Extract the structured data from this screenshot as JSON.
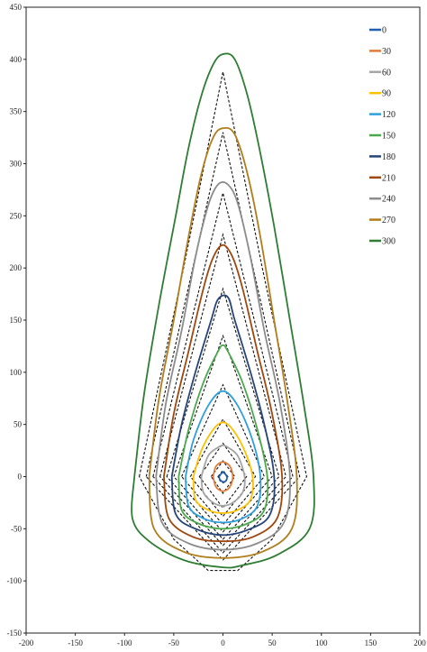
{
  "chart_data": {
    "type": "line",
    "title": "",
    "xlabel": "",
    "ylabel": "",
    "xlim": [
      -200,
      200
    ],
    "ylim": [
      -150,
      450
    ],
    "xticks": [
      -200,
      -150,
      -100,
      -50,
      0,
      50,
      100,
      150,
      200
    ],
    "yticks": [
      -150,
      -100,
      -50,
      0,
      50,
      100,
      150,
      200,
      250,
      300,
      350,
      400,
      450
    ],
    "grid": false,
    "legend_position": "top-right",
    "dashed_style": "black dashed",
    "series": [
      {
        "name": "0",
        "color": "#1f5fae",
        "x": [
          -4,
          0,
          4,
          3,
          0,
          -3,
          -4
        ],
        "y": [
          0,
          4,
          0,
          -4,
          -5,
          -3,
          0
        ]
      },
      {
        "name": "30",
        "color": "#e07b39",
        "x": [
          -10,
          -7,
          0,
          7,
          10,
          7,
          0,
          -7,
          -10
        ],
        "y": [
          0,
          10,
          14,
          10,
          0,
          -10,
          -14,
          -10,
          0
        ]
      },
      {
        "name": "60",
        "color": "#a5a5a5",
        "x": [
          -22,
          -15,
          -5,
          0,
          5,
          15,
          22,
          20,
          10,
          0,
          -10,
          -20,
          -22
        ],
        "y": [
          0,
          20,
          28,
          30,
          28,
          20,
          0,
          -15,
          -25,
          -28,
          -25,
          -15,
          0
        ]
      },
      {
        "name": "90",
        "color": "#ffc000",
        "x": [
          -30,
          -22,
          -10,
          0,
          10,
          22,
          30,
          28,
          15,
          0,
          -15,
          -28,
          -30
        ],
        "y": [
          0,
          25,
          45,
          52,
          45,
          25,
          0,
          -22,
          -32,
          -35,
          -32,
          -22,
          0
        ]
      },
      {
        "name": "120",
        "color": "#2e9fdb",
        "x": [
          -38,
          -30,
          -15,
          0,
          15,
          30,
          38,
          35,
          20,
          0,
          -20,
          -35,
          -38
        ],
        "y": [
          0,
          35,
          68,
          82,
          68,
          35,
          0,
          -28,
          -40,
          -44,
          -40,
          -28,
          0
        ]
      },
      {
        "name": "150",
        "color": "#4ca84c",
        "x": [
          -45,
          -35,
          -20,
          -5,
          0,
          5,
          20,
          35,
          45,
          42,
          25,
          0,
          -25,
          -42,
          -45
        ],
        "y": [
          0,
          45,
          90,
          120,
          126,
          120,
          90,
          45,
          0,
          -32,
          -45,
          -50,
          -45,
          -32,
          0
        ]
      },
      {
        "name": "180",
        "color": "#264478",
        "x": [
          -52,
          -42,
          -28,
          -12,
          -5,
          5,
          12,
          28,
          42,
          52,
          48,
          28,
          0,
          -28,
          -48,
          -52
        ],
        "y": [
          0,
          50,
          100,
          150,
          170,
          172,
          150,
          100,
          50,
          0,
          -36,
          -50,
          -56,
          -50,
          -36,
          0
        ]
      },
      {
        "name": "210",
        "color": "#9e480e",
        "x": [
          -60,
          -50,
          -35,
          -20,
          -10,
          0,
          10,
          20,
          35,
          50,
          60,
          55,
          30,
          0,
          -30,
          -55,
          -60
        ],
        "y": [
          0,
          60,
          120,
          180,
          210,
          222,
          210,
          180,
          120,
          60,
          0,
          -40,
          -58,
          -62,
          -58,
          -40,
          0
        ]
      },
      {
        "name": "240",
        "color": "#8c8c8c",
        "x": [
          -68,
          -58,
          -42,
          -28,
          -15,
          -5,
          5,
          15,
          28,
          42,
          58,
          68,
          62,
          35,
          0,
          -35,
          -62,
          -68
        ],
        "y": [
          0,
          70,
          140,
          210,
          260,
          280,
          280,
          262,
          210,
          140,
          70,
          0,
          -44,
          -64,
          -70,
          -64,
          -44,
          0
        ]
      },
      {
        "name": "270",
        "color": "#b07d1a",
        "x": [
          -75,
          -65,
          -50,
          -35,
          -22,
          -10,
          0,
          12,
          25,
          38,
          52,
          65,
          75,
          70,
          40,
          0,
          -40,
          -70,
          -75
        ],
        "y": [
          0,
          75,
          150,
          230,
          290,
          325,
          334,
          328,
          290,
          230,
          150,
          75,
          0,
          -50,
          -72,
          -78,
          -72,
          -50,
          0
        ]
      },
      {
        "name": "300",
        "color": "#2e7d32",
        "x": [
          -90,
          -80,
          -65,
          -48,
          -35,
          -22,
          -10,
          0,
          12,
          25,
          38,
          52,
          68,
          82,
          92,
          88,
          55,
          20,
          0,
          -40,
          -75,
          -92,
          -90
        ],
        "y": [
          0,
          80,
          165,
          250,
          315,
          365,
          395,
          405,
          400,
          365,
          310,
          240,
          150,
          70,
          0,
          -50,
          -75,
          -85,
          -87,
          -80,
          -62,
          -40,
          0
        ]
      }
    ],
    "dashed_contours": [
      {
        "x": [
          -5,
          0,
          5,
          3,
          0,
          -3,
          -5
        ],
        "y": [
          0,
          6,
          0,
          -5,
          -6,
          -4,
          0
        ]
      },
      {
        "x": [
          -12,
          0,
          12,
          0,
          -12
        ],
        "y": [
          0,
          15,
          0,
          -16,
          0
        ]
      },
      {
        "x": [
          -24,
          0,
          24,
          0,
          -24
        ],
        "y": [
          0,
          32,
          0,
          -30,
          0
        ]
      },
      {
        "x": [
          -33,
          0,
          33,
          0,
          -33
        ],
        "y": [
          0,
          55,
          0,
          -38,
          0
        ]
      },
      {
        "x": [
          -42,
          0,
          42,
          0,
          -42
        ],
        "y": [
          0,
          88,
          0,
          -46,
          0
        ]
      },
      {
        "x": [
          -50,
          0,
          50,
          0,
          -50
        ],
        "y": [
          0,
          135,
          0,
          -53,
          0
        ]
      },
      {
        "x": [
          -57,
          0,
          57,
          0,
          -57
        ],
        "y": [
          0,
          180,
          0,
          -60,
          0
        ]
      },
      {
        "x": [
          -64,
          0,
          64,
          0,
          -64
        ],
        "y": [
          0,
          232,
          0,
          -66,
          0
        ]
      },
      {
        "x": [
          -71,
          0,
          71,
          0,
          -71
        ],
        "y": [
          0,
          272,
          0,
          -73,
          0
        ]
      },
      {
        "x": [
          -78,
          0,
          78,
          0,
          -78
        ],
        "y": [
          0,
          330,
          0,
          -80,
          0
        ]
      },
      {
        "x": [
          -85,
          -40,
          0,
          40,
          85,
          50,
          15,
          -15,
          -50,
          -85
        ],
        "y": [
          0,
          200,
          388,
          200,
          0,
          -60,
          -90,
          -90,
          -60,
          0
        ]
      }
    ]
  }
}
